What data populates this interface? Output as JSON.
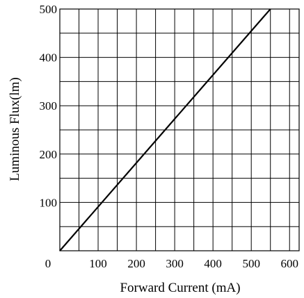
{
  "chart_data": {
    "type": "line",
    "xlabel": "Forward Current (mA)",
    "ylabel": "Luminous Flux(lm)",
    "xlim": [
      0,
      625
    ],
    "ylim": [
      0,
      500
    ],
    "x_ticks": [
      0,
      100,
      200,
      300,
      400,
      500,
      600
    ],
    "x_tick_labels": [
      "0",
      "100",
      "200",
      "300",
      "400",
      "500",
      "600"
    ],
    "y_ticks": [
      100,
      200,
      300,
      400,
      500
    ],
    "y_tick_labels": [
      "100",
      "200",
      "300",
      "400",
      "500"
    ],
    "x_grid_step": 50,
    "y_grid_step": 50,
    "grid": true,
    "series": [
      {
        "x": [
          0,
          550
        ],
        "y": [
          0,
          500
        ]
      }
    ]
  }
}
